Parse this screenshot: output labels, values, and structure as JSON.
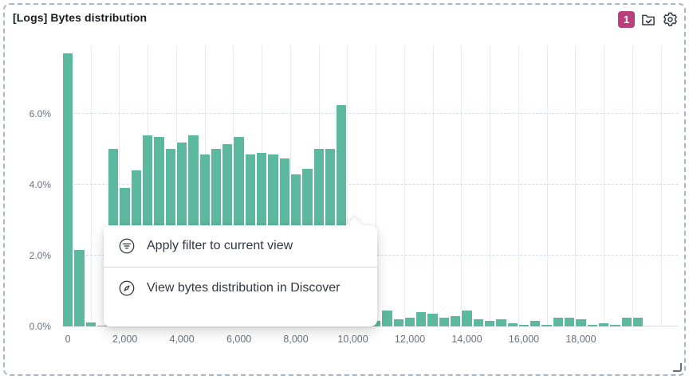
{
  "panel": {
    "title": "[Logs] Bytes distribution",
    "badge_count": "1",
    "accent_color": "#b9407c",
    "action_icons": [
      "folder-check-icon",
      "gear-icon"
    ]
  },
  "context_menu": {
    "items": [
      {
        "label": "Apply filter to current view",
        "icon": "filter-icon"
      },
      {
        "label": "View bytes distribution in Discover",
        "icon": "discover-compass-icon"
      }
    ]
  },
  "chart_data": {
    "type": "bar",
    "title": "[Logs] Bytes distribution",
    "xlabel": "",
    "ylabel": "",
    "y_unit": "%",
    "bar_color": "#5cb89e",
    "x_domain": [
      0,
      21600
    ],
    "ylim": [
      0,
      7.93
    ],
    "bin_width": 400,
    "tick_offset": 200,
    "grid": {
      "x_step": 1000,
      "horizontal_dashed": true
    },
    "y_ticks": [
      {
        "value": 0,
        "label": "0.0%"
      },
      {
        "value": 2,
        "label": "2.0%"
      },
      {
        "value": 4,
        "label": "4.0%"
      },
      {
        "value": 6,
        "label": "6.0%"
      }
    ],
    "x_ticks": [
      {
        "value": 0,
        "label": "0"
      },
      {
        "value": 2000,
        "label": "2,000"
      },
      {
        "value": 4000,
        "label": "4,000"
      },
      {
        "value": 6000,
        "label": "6,000"
      },
      {
        "value": 8000,
        "label": "8,000"
      },
      {
        "value": 10000,
        "label": "10,000"
      },
      {
        "value": 12000,
        "label": "12,000"
      },
      {
        "value": 14000,
        "label": "14,000"
      },
      {
        "value": 16000,
        "label": "16,000"
      },
      {
        "value": 18000,
        "label": "18,000"
      }
    ],
    "bins": [
      [
        0,
        7.7
      ],
      [
        400,
        2.15
      ],
      [
        800,
        0.12
      ],
      [
        1200,
        0.03
      ],
      [
        1600,
        5.0
      ],
      [
        2000,
        3.9
      ],
      [
        2400,
        4.4
      ],
      [
        2800,
        5.4
      ],
      [
        3200,
        5.35
      ],
      [
        3600,
        5.0
      ],
      [
        4000,
        5.2
      ],
      [
        4400,
        5.4
      ],
      [
        4800,
        4.85
      ],
      [
        5200,
        5.0
      ],
      [
        5600,
        5.15
      ],
      [
        6000,
        5.35
      ],
      [
        6400,
        4.85
      ],
      [
        6800,
        4.9
      ],
      [
        7200,
        4.85
      ],
      [
        7600,
        4.75
      ],
      [
        8000,
        4.3
      ],
      [
        8400,
        4.45
      ],
      [
        8800,
        5.0
      ],
      [
        9200,
        5.0
      ],
      [
        9600,
        6.25
      ],
      [
        10000,
        0.3
      ],
      [
        10400,
        0.2
      ],
      [
        10800,
        0.15
      ],
      [
        11200,
        0.45
      ],
      [
        11600,
        0.2
      ],
      [
        12000,
        0.25
      ],
      [
        12400,
        0.4
      ],
      [
        12800,
        0.35
      ],
      [
        13200,
        0.25
      ],
      [
        13600,
        0.3
      ],
      [
        14000,
        0.45
      ],
      [
        14400,
        0.2
      ],
      [
        14800,
        0.15
      ],
      [
        15200,
        0.2
      ],
      [
        15600,
        0.1
      ],
      [
        16000,
        0.05
      ],
      [
        16400,
        0.15
      ],
      [
        16800,
        0.05
      ],
      [
        17200,
        0.25
      ],
      [
        17600,
        0.25
      ],
      [
        18000,
        0.2
      ],
      [
        18400,
        0.05
      ],
      [
        18800,
        0.1
      ],
      [
        19200,
        0.05
      ],
      [
        19600,
        0.25
      ],
      [
        20000,
        0.25
      ]
    ]
  }
}
